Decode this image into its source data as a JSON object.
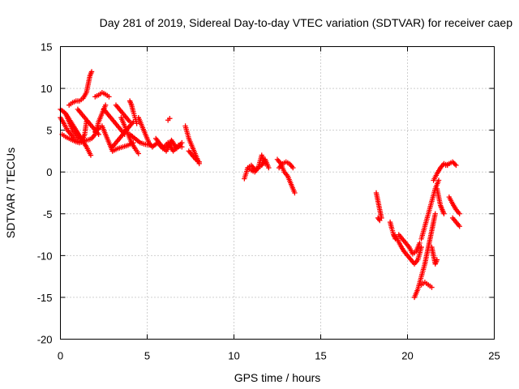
{
  "chart_data": {
    "type": "scatter",
    "title": "Day 281 of 2019, Sidereal Day-to-day VTEC variation (SDTVAR) for receiver caep",
    "xlabel": "GPS time / hours",
    "ylabel": "SDTVAR / TECUs",
    "xlim": [
      0,
      25
    ],
    "ylim": [
      -20,
      15
    ],
    "xticks": [
      0,
      5,
      10,
      15,
      20,
      25
    ],
    "yticks": [
      -20,
      -15,
      -10,
      -5,
      0,
      5,
      10,
      15
    ],
    "grid": true,
    "marker": "plus",
    "color": "#ff0000",
    "segments": [
      {
        "x": [
          0.0,
          0.3,
          0.6,
          0.9,
          1.2,
          1.5,
          1.75
        ],
        "y": [
          7.5,
          7.0,
          6.0,
          5.0,
          4.0,
          3.0,
          2.0
        ]
      },
      {
        "x": [
          0.0,
          0.2,
          0.4,
          0.6,
          0.8,
          1.0,
          1.2,
          1.4,
          1.5
        ],
        "y": [
          6.5,
          5.8,
          5.0,
          4.5,
          4.0,
          3.7,
          3.6,
          4.5,
          6.0
        ]
      },
      {
        "x": [
          0.1,
          0.3,
          0.5,
          0.7,
          0.9,
          1.1,
          1.3,
          1.5,
          1.7
        ],
        "y": [
          4.5,
          4.2,
          4.0,
          3.8,
          3.6,
          3.5,
          3.6,
          3.8,
          3.9
        ]
      },
      {
        "x": [
          0.5,
          0.7,
          0.9,
          1.1,
          1.3,
          1.5,
          1.6,
          1.7,
          1.8
        ],
        "y": [
          8.0,
          8.3,
          8.5,
          8.5,
          8.8,
          9.5,
          10.5,
          11.5,
          12.0
        ]
      },
      {
        "x": [
          0.3,
          0.5,
          0.7,
          0.9,
          1.1,
          1.3
        ],
        "y": [
          7.0,
          6.0,
          5.0,
          4.5,
          4.0,
          4.0
        ]
      },
      {
        "x": [
          1.0,
          1.2,
          1.4,
          1.6,
          1.8,
          2.0,
          2.2
        ],
        "y": [
          7.5,
          7.0,
          6.5,
          6.0,
          5.5,
          5.0,
          4.5
        ]
      },
      {
        "x": [
          1.8,
          2.0,
          2.2,
          2.4,
          2.6
        ],
        "y": [
          4.0,
          4.5,
          6.0,
          7.0,
          8.0
        ]
      },
      {
        "x": [
          2.0,
          2.2,
          2.4,
          2.6,
          2.8
        ],
        "y": [
          9.0,
          9.2,
          9.5,
          9.3,
          9.0
        ]
      },
      {
        "x": [
          2.0,
          2.2,
          2.4,
          2.6,
          2.8,
          3.0
        ],
        "y": [
          4.8,
          5.2,
          5.5,
          4.5,
          3.5,
          2.5
        ]
      },
      {
        "x": [
          2.5,
          2.7,
          2.9,
          3.1,
          3.3,
          3.5,
          3.7
        ],
        "y": [
          7.5,
          7.0,
          6.5,
          6.0,
          5.5,
          5.0,
          4.5
        ]
      },
      {
        "x": [
          3.0,
          3.2,
          3.4,
          3.6,
          3.8,
          4.0,
          4.2
        ],
        "y": [
          3.0,
          3.5,
          4.0,
          4.5,
          5.0,
          5.5,
          6.0
        ]
      },
      {
        "x": [
          3.2,
          3.4,
          3.6,
          3.8,
          4.0
        ],
        "y": [
          8.0,
          7.5,
          7.0,
          6.5,
          6.0
        ]
      },
      {
        "x": [
          3.5,
          3.7,
          3.9,
          4.1,
          4.3,
          4.5
        ],
        "y": [
          6.5,
          5.5,
          4.5,
          3.5,
          2.8,
          2.2
        ]
      },
      {
        "x": [
          3.0,
          3.3,
          3.6,
          3.9,
          4.2
        ],
        "y": [
          2.5,
          2.8,
          3.0,
          3.2,
          3.5
        ]
      },
      {
        "x": [
          4.0,
          4.1,
          4.2,
          4.3,
          4.4
        ],
        "y": [
          8.5,
          8.0,
          7.2,
          6.5,
          5.8
        ]
      },
      {
        "x": [
          4.5,
          4.7,
          4.9,
          5.1,
          5.3
        ],
        "y": [
          6.5,
          5.5,
          4.5,
          3.5,
          3.0
        ]
      },
      {
        "x": [
          4.0,
          4.3,
          4.6,
          4.9,
          5.2
        ],
        "y": [
          4.5,
          4.0,
          3.5,
          3.3,
          3.2
        ]
      },
      {
        "x": [
          5.3,
          5.6,
          5.9,
          6.2,
          6.5,
          6.8,
          7.0
        ],
        "y": [
          3.0,
          3.5,
          2.8,
          3.5,
          2.5,
          3.2,
          3.0
        ]
      },
      {
        "x": [
          5.5,
          5.8,
          6.1,
          6.4,
          6.7,
          7.0
        ],
        "y": [
          4.0,
          3.2,
          2.5,
          3.8,
          2.8,
          3.5
        ]
      },
      {
        "x": [
          6.2,
          6.3
        ],
        "y": [
          6.2,
          6.4
        ]
      },
      {
        "x": [
          7.2,
          7.4,
          7.6,
          7.8,
          8.0
        ],
        "y": [
          5.5,
          4.0,
          3.0,
          2.0,
          1.0
        ]
      },
      {
        "x": [
          7.4,
          7.6,
          7.8,
          8.0
        ],
        "y": [
          2.5,
          2.0,
          1.5,
          1.2
        ]
      },
      {
        "x": [
          10.6,
          10.8,
          11.0,
          11.2,
          11.4,
          11.6,
          11.8,
          12.0
        ],
        "y": [
          -0.8,
          0.5,
          0.8,
          0.3,
          0.5,
          0.8,
          1.5,
          0.5
        ]
      },
      {
        "x": [
          10.8,
          11.0,
          11.2,
          11.4,
          11.6,
          11.8
        ],
        "y": [
          0.5,
          0.2,
          0.0,
          0.5,
          2.0,
          1.0
        ]
      },
      {
        "x": [
          12.5,
          12.7,
          12.9,
          13.1,
          13.3,
          13.5
        ],
        "y": [
          1.5,
          1.0,
          0.0,
          -0.5,
          -1.5,
          -2.5
        ]
      },
      {
        "x": [
          12.6,
          12.8,
          13.0,
          13.2,
          13.4
        ],
        "y": [
          0.5,
          1.0,
          1.2,
          1.0,
          0.5
        ]
      },
      {
        "x": [
          18.2,
          18.3,
          18.4,
          18.5
        ],
        "y": [
          -2.5,
          -3.5,
          -4.5,
          -5.5
        ]
      },
      {
        "x": [
          18.3,
          18.4
        ],
        "y": [
          -5.5,
          -5.8
        ]
      },
      {
        "x": [
          19.0,
          19.1,
          19.2,
          19.3
        ],
        "y": [
          -6.0,
          -6.8,
          -7.5,
          -8.0
        ]
      },
      {
        "x": [
          19.2,
          19.4,
          19.6,
          19.8,
          20.0,
          20.2,
          20.4,
          20.6,
          20.8
        ],
        "y": [
          -7.5,
          -8.0,
          -8.8,
          -9.5,
          -10.0,
          -10.5,
          -11.0,
          -10.5,
          -9.0
        ]
      },
      {
        "x": [
          19.5,
          19.7,
          19.9,
          20.1,
          20.3,
          20.5,
          20.7
        ],
        "y": [
          -7.5,
          -8.0,
          -8.5,
          -9.0,
          -9.8,
          -9.5,
          -8.5
        ]
      },
      {
        "x": [
          20.4,
          20.6,
          20.8,
          21.0,
          21.2,
          21.4,
          21.6
        ],
        "y": [
          -15.0,
          -14.0,
          -12.5,
          -11.0,
          -9.0,
          -7.0,
          -5.0
        ]
      },
      {
        "x": [
          20.8,
          21.0,
          21.2,
          21.4
        ],
        "y": [
          -13.5,
          -13.2,
          -13.5,
          -13.8
        ]
      },
      {
        "x": [
          20.8,
          21.0,
          21.2,
          21.4,
          21.6,
          21.8
        ],
        "y": [
          -8.0,
          -6.5,
          -5.0,
          -3.5,
          -2.0,
          -1.0
        ]
      },
      {
        "x": [
          21.5,
          21.7,
          21.9,
          22.1,
          22.3
        ],
        "y": [
          -1.0,
          -0.2,
          0.5,
          1.0,
          0.8
        ]
      },
      {
        "x": [
          21.7,
          21.8,
          21.9,
          22.0,
          22.1
        ],
        "y": [
          -2.0,
          -3.0,
          -4.0,
          -4.5,
          -5.0
        ]
      },
      {
        "x": [
          21.4,
          21.5,
          21.6,
          21.7
        ],
        "y": [
          -9.0,
          -10.0,
          -11.0,
          -10.5
        ]
      },
      {
        "x": [
          22.2,
          22.4,
          22.6,
          22.8
        ],
        "y": [
          0.8,
          1.0,
          1.2,
          0.8
        ]
      },
      {
        "x": [
          22.4,
          22.6,
          22.8,
          23.0
        ],
        "y": [
          -3.0,
          -3.8,
          -4.5,
          -5.0
        ]
      },
      {
        "x": [
          22.6,
          22.8,
          23.0
        ],
        "y": [
          -5.5,
          -6.0,
          -6.5
        ]
      }
    ]
  }
}
